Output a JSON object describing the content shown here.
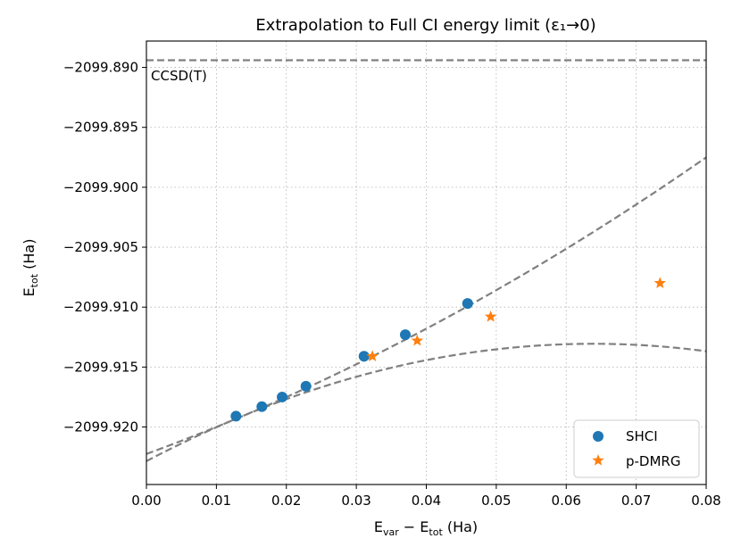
{
  "chart_data": {
    "type": "scatter",
    "title": "Extrapolation to Full CI energy limit (ε₁→0)",
    "xlabel": {
      "main": "E",
      "sub1": "var",
      "mid": " − E",
      "sub2": "tot",
      "tail": " (Ha)"
    },
    "ylabel": {
      "main": "E",
      "sub": "tot",
      "tail": " (Ha)"
    },
    "xlim": [
      0.0,
      0.08
    ],
    "ylim": [
      -2099.9248,
      -2099.8878
    ],
    "xticks": [
      {
        "value": 0.0,
        "label": "0.00"
      },
      {
        "value": 0.01,
        "label": "0.01"
      },
      {
        "value": 0.02,
        "label": "0.02"
      },
      {
        "value": 0.03,
        "label": "0.03"
      },
      {
        "value": 0.04,
        "label": "0.04"
      },
      {
        "value": 0.05,
        "label": "0.05"
      },
      {
        "value": 0.06,
        "label": "0.06"
      },
      {
        "value": 0.07,
        "label": "0.07"
      },
      {
        "value": 0.08,
        "label": "0.08"
      }
    ],
    "yticks": [
      {
        "value": -2099.89,
        "label": "−2099.890"
      },
      {
        "value": -2099.895,
        "label": "−2099.895"
      },
      {
        "value": -2099.9,
        "label": "−2099.900"
      },
      {
        "value": -2099.905,
        "label": "−2099.905"
      },
      {
        "value": -2099.91,
        "label": "−2099.910"
      },
      {
        "value": -2099.915,
        "label": "−2099.915"
      },
      {
        "value": -2099.92,
        "label": "−2099.920"
      }
    ],
    "grid": true,
    "legend_position": "bottom-right",
    "reference_line": {
      "label": "CCSD(T)",
      "y": -2099.8894,
      "color": "#808080"
    },
    "series": [
      {
        "name": "SHCI",
        "marker": "circle",
        "color": "#1f77b4",
        "x": [
          0.0128,
          0.0165,
          0.0194,
          0.0228,
          0.0311,
          0.037,
          0.0459
        ],
        "y": [
          -2099.9191,
          -2099.9183,
          -2099.9175,
          -2099.9166,
          -2099.9141,
          -2099.9123,
          -2099.9097
        ],
        "fit": {
          "kind": "quadratic",
          "coeffs": [
            -2099.92225,
            0.2133,
            1.2
          ],
          "x_range": [
            0.0,
            0.08
          ],
          "color": "#808080"
        }
      },
      {
        "name": "p-DMRG",
        "marker": "star",
        "color": "#ff7f0e",
        "x": [
          0.0323,
          0.0387,
          0.0492,
          0.0734
        ],
        "y": [
          -2099.9141,
          -2099.9128,
          -2099.9108,
          -2099.908
        ],
        "fit": {
          "kind": "quadratic",
          "coeffs": [
            -2099.92285,
            0.3066,
            -2.4
          ],
          "x_range": [
            0.0,
            0.08
          ],
          "color": "#808080"
        }
      }
    ]
  }
}
